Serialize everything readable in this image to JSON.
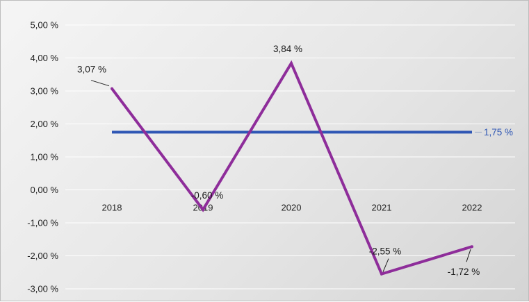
{
  "chart_data": {
    "type": "line",
    "title": "",
    "xlabel": "",
    "ylabel": "",
    "categories": [
      "2018",
      "2019",
      "2020",
      "2021",
      "2022"
    ],
    "series": [
      {
        "values": [
          3.07,
          -0.6,
          3.84,
          -2.55,
          -1.72
        ],
        "value_labels": [
          "3,07 %",
          "-0,60 %",
          "3,84 %",
          "-2,55 %",
          "-1,72 %"
        ],
        "color": "#8e2d9a"
      },
      {
        "values": [
          1.75,
          1.75,
          1.75,
          1.75,
          1.75
        ],
        "value_label": "1,75 %",
        "color": "#2e56b4"
      }
    ],
    "ylim": [
      -3,
      5
    ],
    "yticks": [
      -3,
      -2,
      -1,
      0,
      1,
      2,
      3,
      4,
      5
    ],
    "ytick_labels": [
      "-3,00 %",
      "-2,00 %",
      "-1,00 %",
      "0,00 %",
      "1,00 %",
      "2,00 %",
      "3,00 %",
      "4,00 %",
      "5,00 %"
    ],
    "grid": true,
    "legend": "none"
  }
}
